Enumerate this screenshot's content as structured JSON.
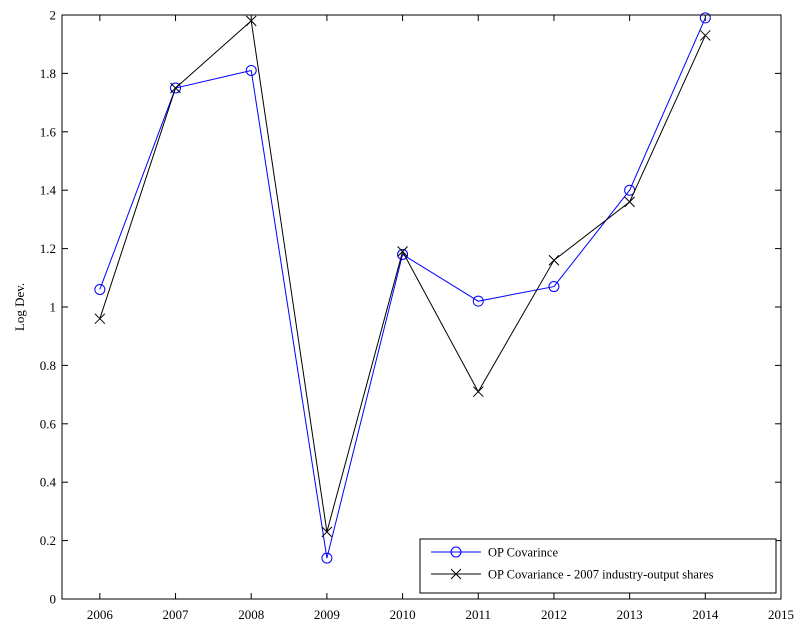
{
  "chart_data": {
    "type": "line",
    "title": "",
    "xlabel": "",
    "ylabel": "Log Dev.",
    "xlim": [
      2005.5,
      2015
    ],
    "ylim": [
      0,
      2
    ],
    "xticks": [
      2006,
      2007,
      2008,
      2009,
      2010,
      2011,
      2012,
      2013,
      2014,
      2015
    ],
    "yticks": [
      0,
      0.2,
      0.4,
      0.6,
      0.8,
      1,
      1.2,
      1.4,
      1.6,
      1.8,
      2
    ],
    "ytick_labels": [
      "0",
      "0.2",
      "0.4",
      "0.6",
      "0.8",
      "1",
      "1.2",
      "1.4",
      "1.6",
      "1.8",
      "2"
    ],
    "grid": false,
    "legend_position": "bottom-right",
    "x": [
      2006,
      2007,
      2008,
      2009,
      2010,
      2011,
      2012,
      2013,
      2014
    ],
    "series": [
      {
        "name": "OP Covarince",
        "color": "#0000ff",
        "marker": "circle",
        "values": [
          1.06,
          1.75,
          1.81,
          0.14,
          1.18,
          1.02,
          1.07,
          1.4,
          1.99
        ]
      },
      {
        "name": "OP Covariance - 2007 industry-output shares",
        "color": "#000000",
        "marker": "x",
        "values": [
          0.96,
          1.75,
          1.98,
          0.23,
          1.19,
          0.71,
          1.16,
          1.36,
          1.93
        ]
      }
    ]
  }
}
